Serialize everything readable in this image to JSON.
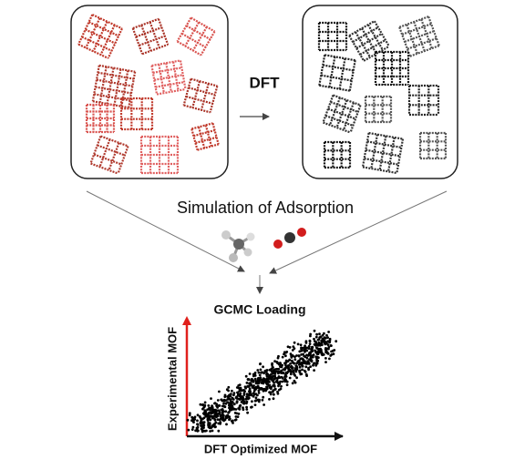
{
  "header": {
    "method": "DFT",
    "process": "Simulation of Adsorption"
  },
  "plot": {
    "title": "GCMC Loading",
    "y_label": "Experimental MOF",
    "x_label": "DFT Optimized MOF"
  }
}
